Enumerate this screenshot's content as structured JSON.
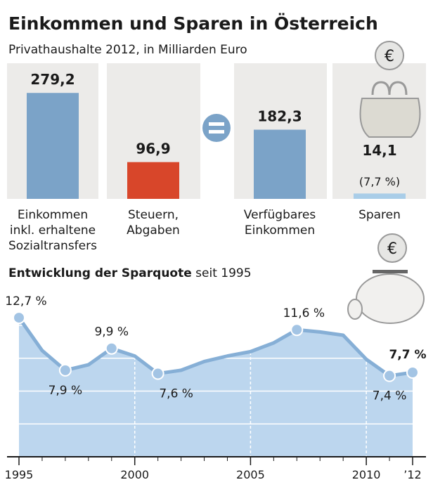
{
  "chart_data": [
    {
      "type": "bar",
      "title": "Einkommen und Sparen in Österreich",
      "subtitle": "Privathaushalte 2012, in Milliarden Euro",
      "categories": [
        "Einkommen\ninkl. erhaltene\nSozialtransfers",
        "Steuern,\nAbgaben",
        "Verfügbares\nEinkommen",
        "Sparen"
      ],
      "values": [
        279.2,
        96.9,
        182.3,
        14.1
      ],
      "value_labels": [
        "279,2",
        "96,9",
        "182,3",
        "14,1"
      ],
      "colors": [
        "#7ba3c8",
        "#d8462a",
        "#7ba3c8",
        "#a9cde8"
      ],
      "annotations": [
        "(7,7 %)"
      ],
      "ylim": [
        0,
        300
      ]
    },
    {
      "type": "line",
      "title": [
        "Entwicklung der Sparquote",
        "seit 1995"
      ],
      "x": [
        1995,
        1996,
        1997,
        1998,
        1999,
        2000,
        2001,
        2002,
        2003,
        2004,
        2005,
        2006,
        2007,
        2008,
        2009,
        2010,
        2011,
        2012
      ],
      "values": [
        12.7,
        9.7,
        7.9,
        8.4,
        9.9,
        9.2,
        7.6,
        7.9,
        8.7,
        9.2,
        9.6,
        10.4,
        11.6,
        11.4,
        11.1,
        8.9,
        7.4,
        7.7
      ],
      "value_labels": [
        "12,7 %",
        null,
        "7,9 %",
        null,
        "9,9 %",
        null,
        "7,6 %",
        null,
        null,
        null,
        null,
        null,
        "11,6 %",
        null,
        null,
        null,
        "7,4 %",
        "7,7 %"
      ],
      "color": "#86afd6",
      "xlim": [
        1995,
        2012
      ],
      "xticks": [
        1995,
        2000,
        2005,
        2010,
        {
          "value": 2012,
          "label": "’12"
        }
      ],
      "ylim": [
        0,
        15.4
      ],
      "yticks": [
        3,
        6,
        9,
        12
      ],
      "grid": true
    }
  ]
}
